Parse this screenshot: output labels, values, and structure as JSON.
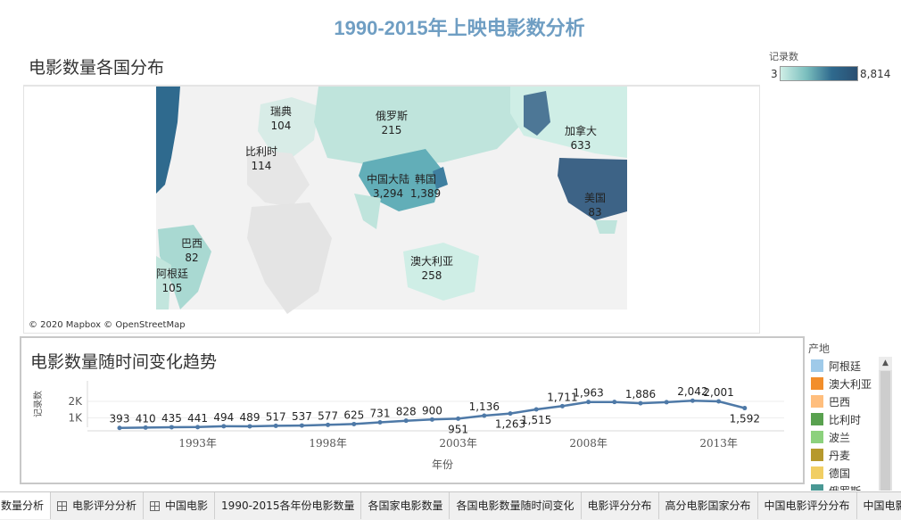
{
  "dashboard": {
    "title": "1990-2015年上映电影数分析"
  },
  "map": {
    "title": "电影数量各国分布",
    "credit": "© 2020 Mapbox © OpenStreetMap",
    "labels": [
      {
        "name": "瑞典",
        "value": "104"
      },
      {
        "name": "俄罗斯",
        "value": "215"
      },
      {
        "name": "加拿大",
        "value": "633"
      },
      {
        "name": "比利时",
        "value": "114"
      },
      {
        "name": "中国大陆",
        "value": "3,294"
      },
      {
        "name": "韩国",
        "value": "1,389"
      },
      {
        "name": "美国",
        "value": "83"
      },
      {
        "name": "巴西",
        "value": "82"
      },
      {
        "name": "澳大利亚",
        "value": "258"
      },
      {
        "name": "阿根廷",
        "value": "105"
      }
    ]
  },
  "count_legend": {
    "title": "记录数",
    "min": "3",
    "max": "8,814",
    "colors": [
      "#cfeee6",
      "#7bbfbe",
      "#2f6a8e",
      "#2a4f72"
    ]
  },
  "trend": {
    "title": "电影数量随时间变化趋势"
  },
  "chart_data": {
    "type": "line",
    "x": [
      1990,
      1991,
      1992,
      1993,
      1994,
      1995,
      1996,
      1997,
      1998,
      1999,
      2000,
      2001,
      2002,
      2003,
      2004,
      2005,
      2006,
      2007,
      2008,
      2009,
      2010,
      2011,
      2012,
      2013,
      2014,
      2015
    ],
    "values": [
      393,
      410,
      435,
      441,
      494,
      489,
      517,
      537,
      577,
      625,
      731,
      828,
      900,
      951,
      1136,
      1263,
      1515,
      1711,
      1963,
      1963,
      1886,
      1950,
      2042,
      2001,
      1592,
      null
    ],
    "data_labels": [
      "393",
      "410",
      "435",
      "441",
      "494",
      "489",
      "517",
      "537",
      "577",
      "625",
      "731",
      "828",
      "900",
      "951",
      "1,136",
      "1,263",
      "1,515",
      "1,711",
      "1,963",
      "",
      "1,886",
      "",
      "2,042",
      "2,001",
      "1,592",
      ""
    ],
    "ticks_x": [
      "1993年",
      "1998年",
      "2003年",
      "2008年",
      "2013年"
    ],
    "ticks_y": [
      "2K",
      "1K"
    ],
    "xlabel": "年份",
    "ylabel": "记录数",
    "line_color": "#4e79a7"
  },
  "region_legend": {
    "title": "产地",
    "items": [
      {
        "label": "阿根廷",
        "color": "#9fcae9"
      },
      {
        "label": "澳大利亚",
        "color": "#f28e2b"
      },
      {
        "label": "巴西",
        "color": "#ffbe7d"
      },
      {
        "label": "比利时",
        "color": "#59a14f"
      },
      {
        "label": "波兰",
        "color": "#8cd17d"
      },
      {
        "label": "丹麦",
        "color": "#b6992d"
      },
      {
        "label": "德国",
        "color": "#f1ce63"
      },
      {
        "label": "俄罗斯",
        "color": "#499894"
      }
    ],
    "scroll_up": "▲"
  },
  "tabs": [
    {
      "label": "数量分析",
      "icon": false
    },
    {
      "label": "电影评分分析",
      "icon": true
    },
    {
      "label": "中国电影",
      "icon": true
    },
    {
      "label": "1990-2015各年份电影数量",
      "icon": false
    },
    {
      "label": "各国家电影数量",
      "icon": false
    },
    {
      "label": "各国电影数量随时间变化",
      "icon": false
    },
    {
      "label": "电影评分分布",
      "icon": false
    },
    {
      "label": "高分电影国家分布",
      "icon": false
    },
    {
      "label": "中国电影评分分布",
      "icon": false
    },
    {
      "label": "中国电影",
      "icon": false
    }
  ]
}
